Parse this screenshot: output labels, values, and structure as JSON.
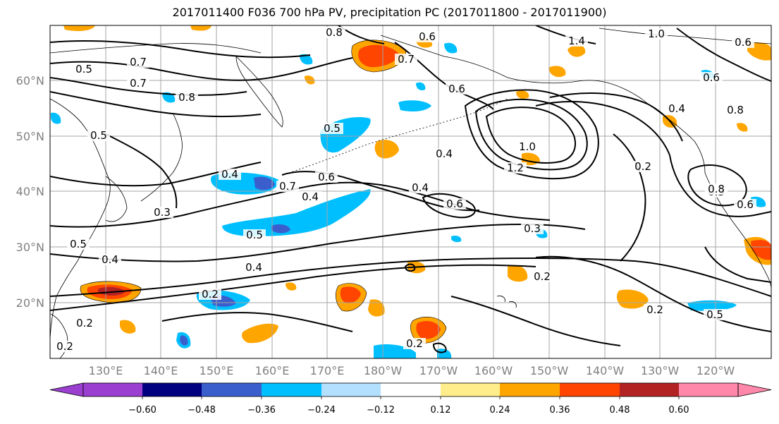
{
  "title": "2017011400 F036 700 hPa PV, precipitation PC (2017011800 - 2017011900)",
  "map": {
    "lon_labels": [
      "130°E",
      "140°E",
      "150°E",
      "160°E",
      "170°E",
      "180°W",
      "170°W",
      "160°W",
      "150°W",
      "140°W",
      "130°W",
      "120°W"
    ],
    "lat_labels": [
      "60°N",
      "50°N",
      "40°N",
      "30°N",
      "20°N"
    ],
    "contour_labels": [
      "0.7",
      "0.8",
      "0.6",
      "0.7",
      "1.4",
      "1.0",
      "0.6",
      "0.6",
      "0.7",
      "0.5",
      "0.8",
      "0.6",
      "0.4",
      "0.5",
      "0.8",
      "1.0",
      "0.4",
      "0.3",
      "0.5",
      "0.4",
      "0.7",
      "0.6",
      "0.4",
      "1.2",
      "0.2",
      "0.8",
      "0.6",
      "0.3",
      "0.6",
      "0.4",
      "0.3",
      "0.5",
      "0.4",
      "0.5",
      "0.4",
      "0.2",
      "0.2",
      "0.2",
      "0.5",
      "0.2",
      "0.2",
      "0.2"
    ]
  },
  "colorbar": {
    "colors": [
      "#9a3fcf",
      "#000080",
      "#3a5fcd",
      "#00bfff",
      "#b3e0ff",
      "#ffffff",
      "#ffec8b",
      "#ffa500",
      "#ff4500",
      "#b22222",
      "#ff88aa"
    ],
    "ticks": [
      "−0.60",
      "−0.48",
      "−0.36",
      "−0.24",
      "−0.12",
      "0.12",
      "0.24",
      "0.36",
      "0.48",
      "0.60"
    ]
  },
  "colors": {
    "neg_strong": "#3a5fcd",
    "neg": "#00bfff",
    "pos": "#ffa500",
    "pos_strong": "#ff4500",
    "pos_max": "#b22222"
  }
}
